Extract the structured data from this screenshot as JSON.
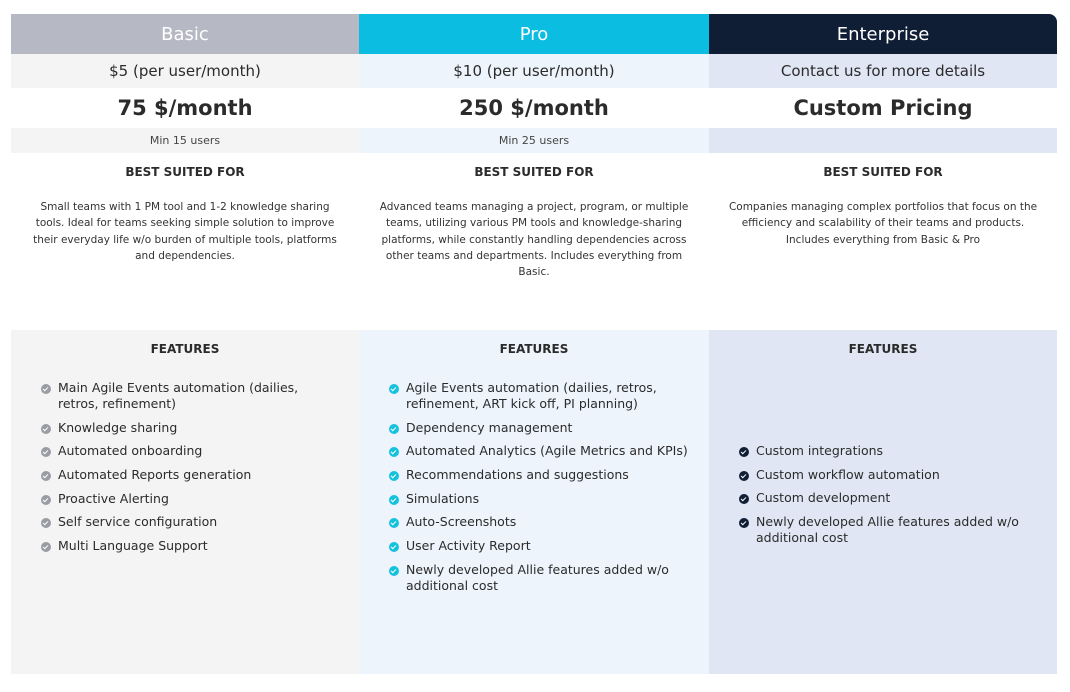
{
  "plans": [
    {
      "name": "Basic",
      "price": "$5 (per user/month)",
      "monthly": "75 $/month",
      "min_users": "Min 15 users",
      "suited_heading": "BEST SUITED FOR",
      "description": "Small teams with 1 PM tool and 1-2 knowledge sharing tools. Ideal for teams seeking simple solution to improve their everyday life w/o burden of multiple tools, platforms and dependencies.",
      "features_heading": "FEATURES",
      "features": [
        "Main Agile Events automation (dailies, retros, refinement)",
        "Knowledge sharing",
        "Automated onboarding",
        "Automated Reports generation",
        "Proactive Alerting",
        "Self service configuration",
        "Multi Language Support"
      ]
    },
    {
      "name": "Pro",
      "price": "$10 (per user/month)",
      "monthly": "250 $/month",
      "min_users": "Min 25 users",
      "suited_heading": "BEST SUITED FOR",
      "description": "Advanced teams managing a project, program, or multiple teams, utilizing various PM tools and knowledge-sharing platforms, while constantly handling dependencies across other teams and departments. Includes everything from Basic.",
      "features_heading": "FEATURES",
      "features": [
        "Agile Events automation (dailies, retros, refinement, ART kick off, PI planning)",
        "Dependency management",
        "Automated Analytics (Agile Metrics and KPIs)",
        "Recommendations and suggestions",
        "Simulations",
        "Auto-Screenshots",
        "User Activity Report",
        "Newly developed Allie features added w/o additional cost"
      ]
    },
    {
      "name": "Enterprise",
      "price": "Contact us for more details",
      "monthly": "Custom Pricing",
      "suited_heading": "BEST SUITED FOR",
      "description": "Companies managing complex portfolios that focus on the efficiency and scalability of their teams and products. Includes everything from Basic & Pro",
      "features_heading": "FEATURES",
      "features": [
        "Custom integrations",
        "Custom workflow automation",
        "Custom development",
        "Newly developed Allie features added w/o additional cost"
      ]
    }
  ]
}
